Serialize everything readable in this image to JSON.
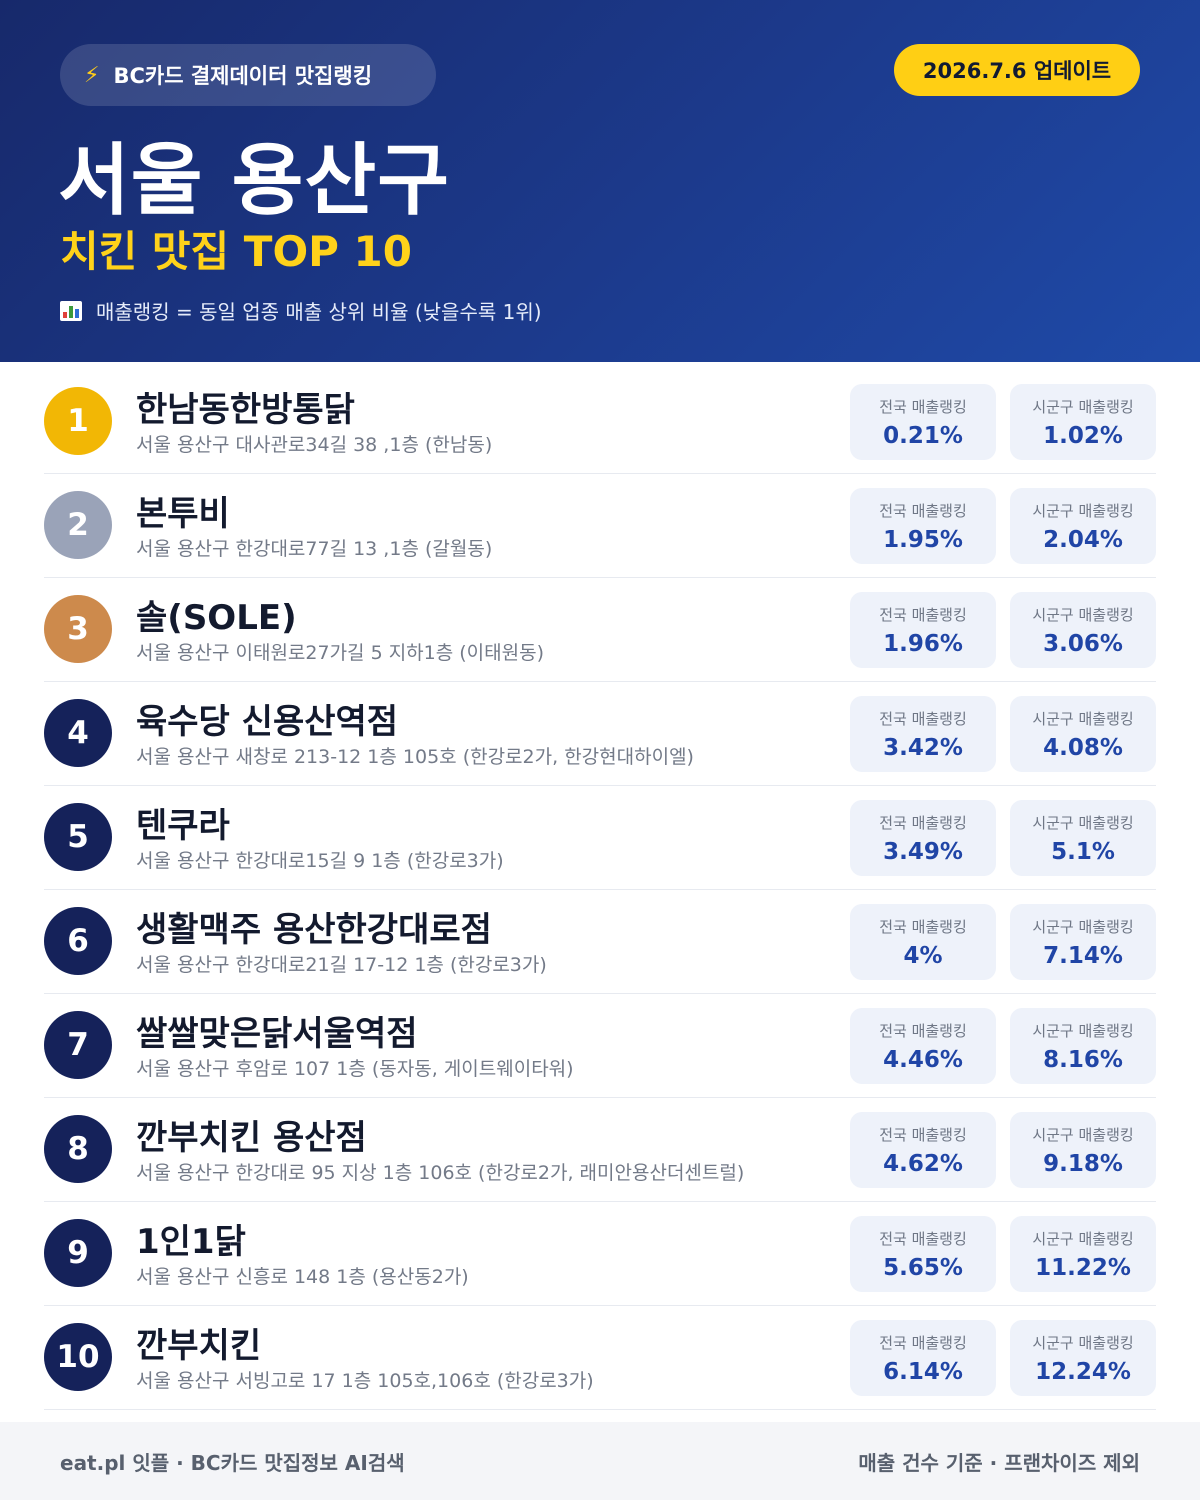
{
  "header": {
    "badge_icon": "lightning-icon",
    "badge_text": "BC카드 결제데이터 맛집랭킹",
    "update_text": "2026.7.6 업데이트",
    "title": "서울 용산구",
    "subtitle": "치킨 맛집 TOP 10",
    "note_icon": "bar-chart-icon",
    "note_text": "매출랭킹 = 동일 업종 매출 상위 비율 (낮을수록 1위)"
  },
  "labels": {
    "national": "전국 매출랭킹",
    "local": "시군구 매출랭킹"
  },
  "colors": {
    "gold": "#f2b705",
    "silver": "#9aa3b8",
    "bronze": "#cd8a4c",
    "navy": "#15225a",
    "accent_yellow": "#ffcf14",
    "value_blue": "#2045a6"
  },
  "restaurants": [
    {
      "rank": "1",
      "name": "한남동한방통닭",
      "address": "서울 용산구 대사관로34길 38 ,1층 (한남동)",
      "national": "0.21%",
      "local": "1.02%"
    },
    {
      "rank": "2",
      "name": "본투비",
      "address": "서울 용산구 한강대로77길 13 ,1층 (갈월동)",
      "national": "1.95%",
      "local": "2.04%"
    },
    {
      "rank": "3",
      "name": "솔(SOLE)",
      "address": "서울 용산구 이태원로27가길 5 지하1층 (이태원동)",
      "national": "1.96%",
      "local": "3.06%"
    },
    {
      "rank": "4",
      "name": "육수당 신용산역점",
      "address": "서울 용산구 새창로 213-12 1층 105호 (한강로2가, 한강현대하이엘)",
      "national": "3.42%",
      "local": "4.08%"
    },
    {
      "rank": "5",
      "name": "텐쿠라",
      "address": "서울 용산구 한강대로15길 9 1층 (한강로3가)",
      "national": "3.49%",
      "local": "5.1%"
    },
    {
      "rank": "6",
      "name": "생활맥주 용산한강대로점",
      "address": "서울 용산구 한강대로21길 17-12 1층 (한강로3가)",
      "national": "4%",
      "local": "7.14%"
    },
    {
      "rank": "7",
      "name": "쌀쌀맞은닭서울역점",
      "address": "서울 용산구 후암로 107 1층 (동자동, 게이트웨이타워)",
      "national": "4.46%",
      "local": "8.16%"
    },
    {
      "rank": "8",
      "name": "깐부치킨 용산점",
      "address": "서울 용산구 한강대로 95 지상 1층 106호 (한강로2가, 래미안용산더센트럴)",
      "national": "4.62%",
      "local": "9.18%"
    },
    {
      "rank": "9",
      "name": "1인1닭",
      "address": "서울 용산구 신흥로 148 1층 (용산동2가)",
      "national": "5.65%",
      "local": "11.22%"
    },
    {
      "rank": "10",
      "name": "깐부치킨",
      "address": "서울 용산구 서빙고로 17 1층 105호,106호 (한강로3가)",
      "national": "6.14%",
      "local": "12.24%"
    }
  ],
  "footer": {
    "left": "eat.pl 잇플 · BC카드 맛집정보 AI검색",
    "right": "매출 건수 기준 · 프랜차이즈 제외"
  }
}
